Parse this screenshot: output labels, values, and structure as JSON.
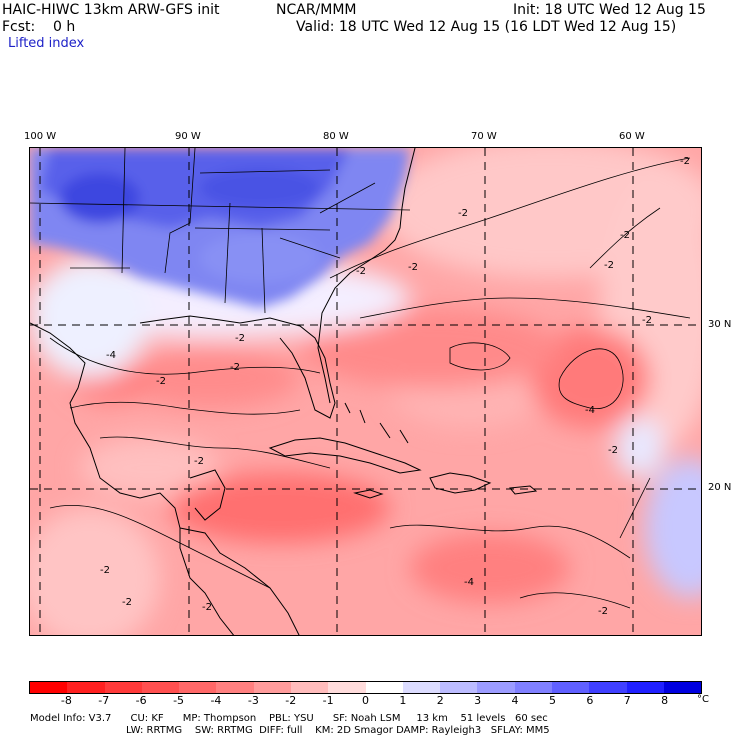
{
  "header": {
    "title": "HAIC-HIWC 13km ARW-GFS init",
    "org": "NCAR/MMM",
    "init": "Init: 18 UTC Wed 12 Aug 15",
    "fcst": "Fcst:    0 h",
    "valid": "Valid: 18 UTC Wed 12 Aug 15 (16 LDT Wed 12 Aug 15)",
    "field": "Lifted index"
  },
  "map": {
    "lon_labels": [
      "100 W",
      "90 W",
      "80 W",
      "70 W",
      "60 W"
    ],
    "lat_labels": [
      "30 N",
      "20 N"
    ],
    "contour_labels": [
      "-2",
      "-4"
    ]
  },
  "colorbar": {
    "ticks": [
      "-8",
      "-7",
      "-6",
      "-5",
      "-4",
      "-3",
      "-2",
      "-1",
      "0",
      "1",
      "2",
      "3",
      "4",
      "5",
      "6",
      "7",
      "8"
    ],
    "unit": "°C",
    "colors": [
      "#ff0000",
      "#ff2020",
      "#ff3a3a",
      "#ff5050",
      "#ff6868",
      "#ff8080",
      "#ff9c9c",
      "#ffbcbc",
      "#ffdcdc",
      "#ffffff",
      "#dcdcff",
      "#bcbcff",
      "#9c9cff",
      "#8080ff",
      "#6060ff",
      "#4040ff",
      "#2020ff",
      "#0000e0"
    ]
  },
  "footer": {
    "line1": "Model Info: V3.7      CU: KF      MP: Thompson    PBL: YSU      SF: Noah LSM     13 km    51 levels   60 sec",
    "line2": "LW: RRTMG    SW: RRTMG  DIFF: full    KM: 2D Smagor DAMP: Rayleigh3   SFLAY: MM5"
  }
}
